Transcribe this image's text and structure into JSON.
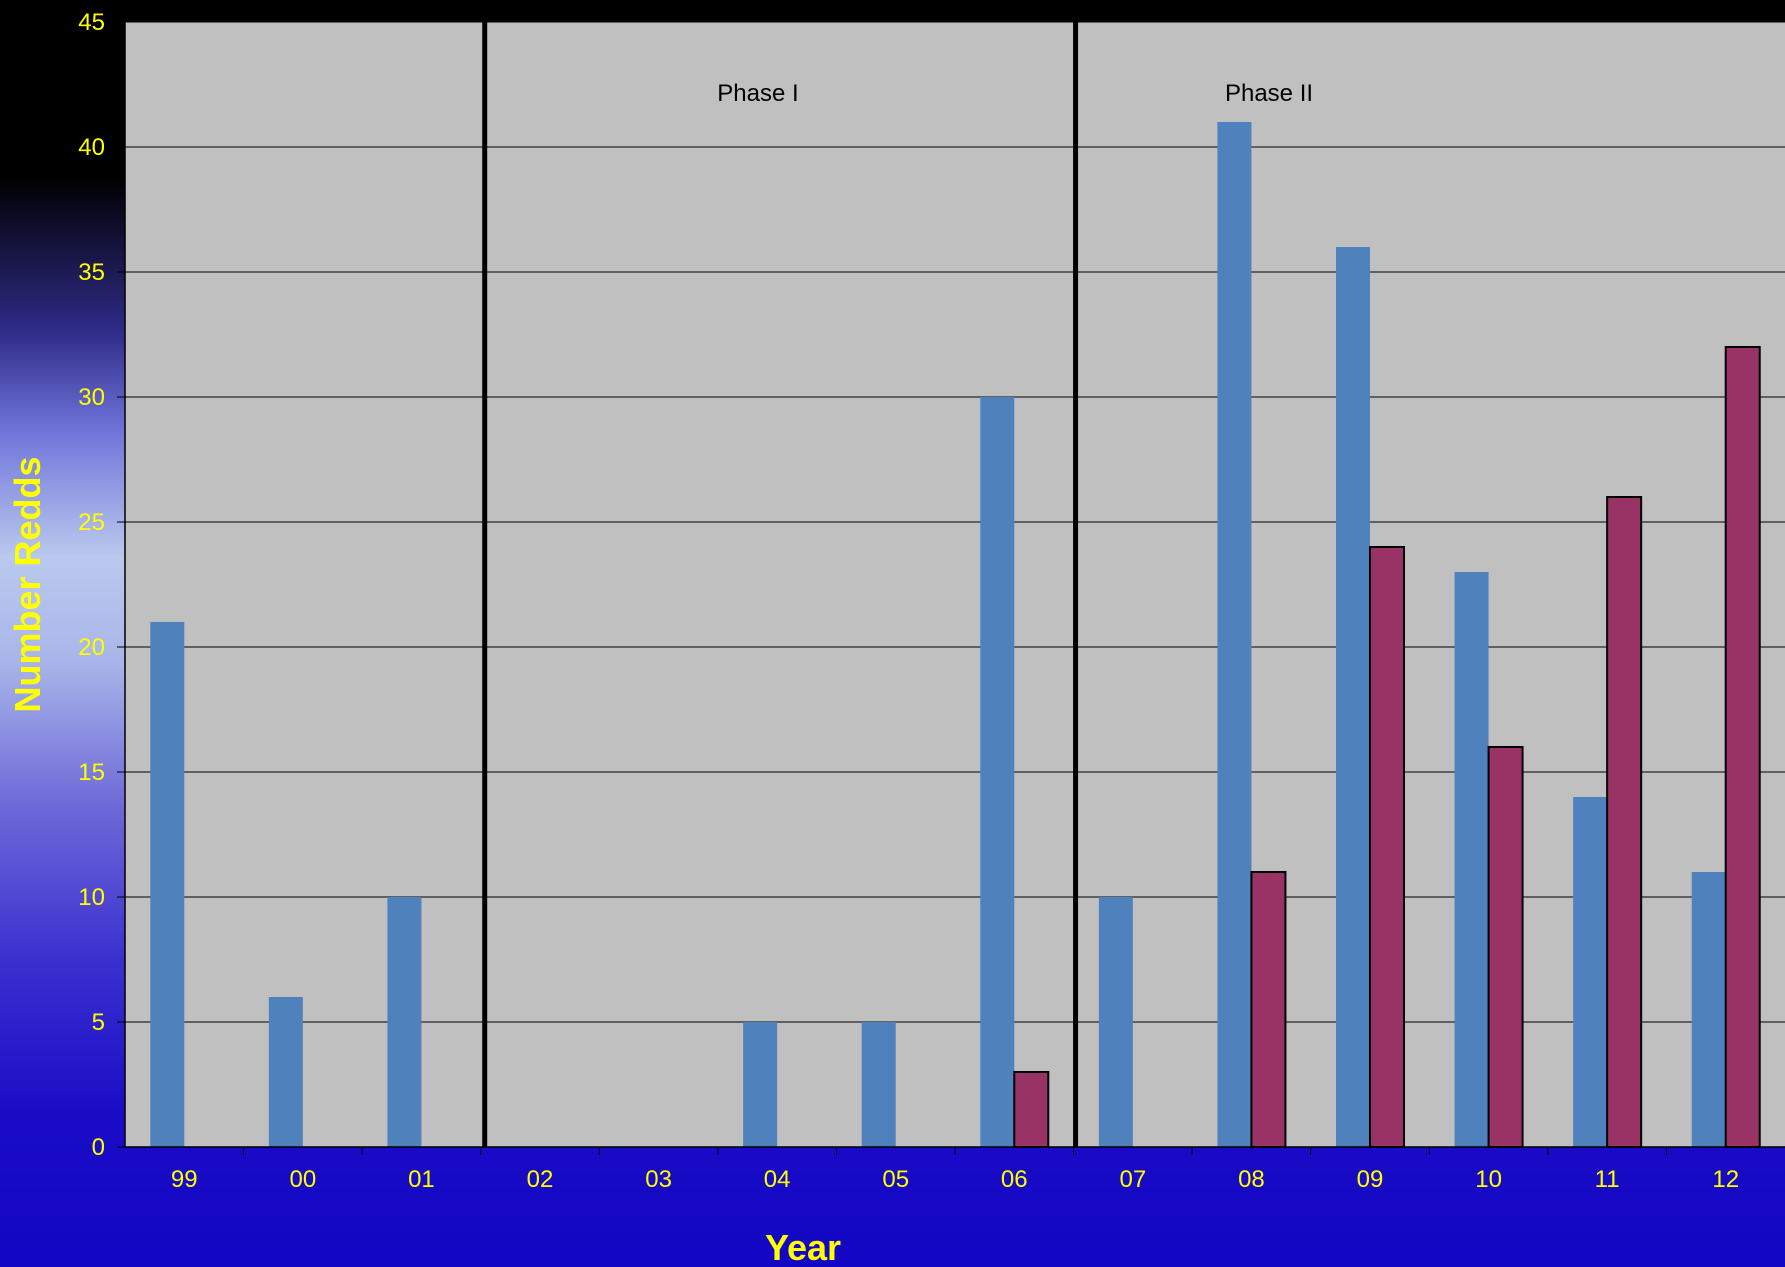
{
  "chart_data": {
    "type": "bar",
    "title": "",
    "xlabel": "Year",
    "ylabel": "Number Redds",
    "categories": [
      "99",
      "00",
      "01",
      "02",
      "03",
      "04",
      "05",
      "06",
      "07",
      "08",
      "09",
      "10",
      "11",
      "12"
    ],
    "series": [
      {
        "values": [
          21,
          6,
          10,
          0,
          0,
          5,
          5,
          30,
          10,
          41,
          36,
          23,
          14,
          11
        ],
        "color": "#4f81bd"
      },
      {
        "values": [
          0,
          0,
          0,
          0,
          0,
          0,
          0,
          3,
          0,
          11,
          24,
          16,
          26,
          32
        ],
        "color": "#993366"
      }
    ],
    "ylim": [
      0,
      45
    ],
    "yticks": [
      0,
      5,
      10,
      15,
      20,
      25,
      30,
      35,
      40,
      45
    ],
    "grid": true,
    "legend": "none",
    "plot_background": "#c0c0c0",
    "phase_dividers": [
      {
        "after_category": "01"
      },
      {
        "after_category": "06"
      }
    ],
    "annotations": [
      {
        "text": "Phase I"
      },
      {
        "text": "Phase II"
      }
    ]
  }
}
